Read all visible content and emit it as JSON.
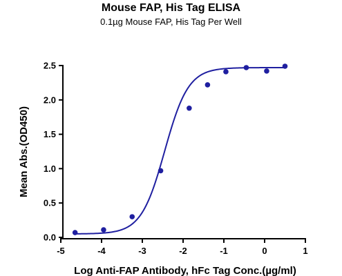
{
  "chart_data": {
    "type": "scatter",
    "title": "Mouse FAP, His Tag ELISA",
    "subtitle": "0.1µg Mouse FAP, His Tag Per Well",
    "xlabel": "Log Anti-FAP Antibody, hFc Tag Conc.(µg/ml)",
    "ylabel": "Mean Abs.(OD450)",
    "xlim": [
      -5,
      1
    ],
    "ylim": [
      0,
      2.5
    ],
    "xticks": [
      "-5",
      "-4",
      "-3",
      "-2",
      "-1",
      "0",
      "1"
    ],
    "yticks": [
      "0.0",
      "0.5",
      "1.0",
      "1.5",
      "2.0",
      "2.5"
    ],
    "grid": false,
    "colors": {
      "series": "#1f1fa0"
    },
    "series": [
      {
        "points": [
          {
            "x": -4.65,
            "y": 0.07
          },
          {
            "x": -3.95,
            "y": 0.11
          },
          {
            "x": -3.25,
            "y": 0.3
          },
          {
            "x": -2.55,
            "y": 0.97
          },
          {
            "x": -1.85,
            "y": 1.88
          },
          {
            "x": -1.4,
            "y": 2.22
          },
          {
            "x": -0.95,
            "y": 2.41
          },
          {
            "x": -0.45,
            "y": 2.47
          },
          {
            "x": 0.05,
            "y": 2.42
          },
          {
            "x": 0.5,
            "y": 2.49
          }
        ],
        "fit": {
          "model": "4PL",
          "bottom": 0.05,
          "top": 2.47,
          "logEC50": -2.45,
          "hill": 1.5
        }
      }
    ]
  }
}
